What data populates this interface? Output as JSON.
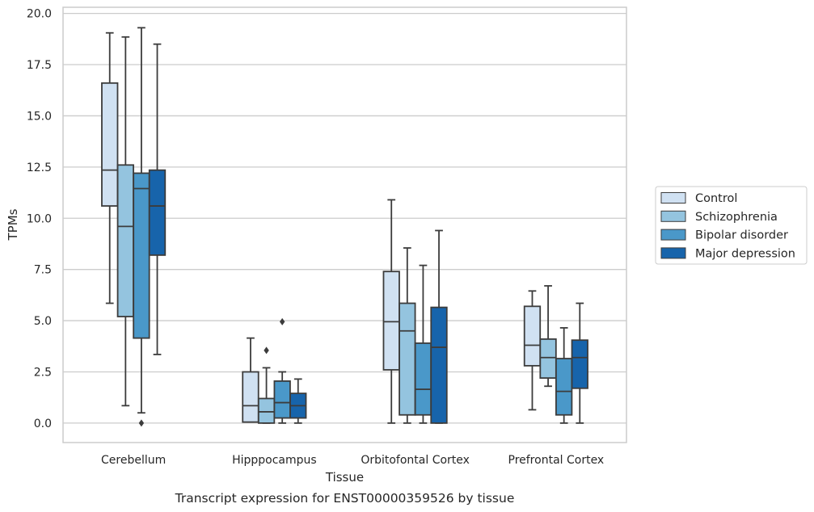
{
  "caption": "Transcript expression for ENST00000359526 by tissue",
  "chart_data": {
    "type": "box",
    "xlabel": "Tissue",
    "ylabel": "TPMs",
    "ylim": [
      -0.95,
      20.3
    ],
    "yticks": [
      0.0,
      2.5,
      5.0,
      7.5,
      10.0,
      12.5,
      15.0,
      17.5,
      20.0
    ],
    "ytick_labels": [
      "0.0",
      "2.5",
      "5.0",
      "7.5",
      "10.0",
      "12.5",
      "15.0",
      "17.5",
      "20.0"
    ],
    "grid": "horizontal",
    "legend_position": "right, outside plot",
    "categories": [
      "Cerebellum",
      "Hipppocampus",
      "Orbitofontal Cortex",
      "Prefrontal Cortex"
    ],
    "series": [
      {
        "name": "Control",
        "color": "#d0e1f2",
        "boxes": [
          {
            "whislo": 5.85,
            "q1": 10.6,
            "med": 12.35,
            "q3": 16.6,
            "whishi": 19.05,
            "fliers": []
          },
          {
            "whislo": 0.05,
            "q1": 0.05,
            "med": 0.85,
            "q3": 2.5,
            "whishi": 4.15,
            "fliers": []
          },
          {
            "whislo": 0.0,
            "q1": 2.6,
            "med": 4.95,
            "q3": 7.4,
            "whishi": 10.9,
            "fliers": []
          },
          {
            "whislo": 0.65,
            "q1": 2.8,
            "med": 3.8,
            "q3": 5.7,
            "whishi": 6.45,
            "fliers": []
          }
        ]
      },
      {
        "name": "Schizophrenia",
        "color": "#94c4df",
        "boxes": [
          {
            "whislo": 0.85,
            "q1": 5.2,
            "med": 9.6,
            "q3": 12.6,
            "whishi": 18.85,
            "fliers": []
          },
          {
            "whislo": 0.0,
            "q1": 0.0,
            "med": 0.55,
            "q3": 1.2,
            "whishi": 2.7,
            "fliers": [
              3.55
            ]
          },
          {
            "whislo": 0.0,
            "q1": 0.4,
            "med": 4.5,
            "q3": 5.85,
            "whishi": 8.55,
            "fliers": []
          },
          {
            "whislo": 1.8,
            "q1": 2.2,
            "med": 3.2,
            "q3": 4.1,
            "whishi": 6.7,
            "fliers": []
          }
        ]
      },
      {
        "name": "Bipolar disorder",
        "color": "#4a98c9",
        "boxes": [
          {
            "whislo": 0.5,
            "q1": 4.15,
            "med": 11.45,
            "q3": 12.2,
            "whishi": 19.3,
            "fliers": [
              0.0
            ]
          },
          {
            "whislo": 0.0,
            "q1": 0.25,
            "med": 1.0,
            "q3": 2.05,
            "whishi": 2.5,
            "fliers": [
              4.95
            ]
          },
          {
            "whislo": 0.0,
            "q1": 0.4,
            "med": 1.65,
            "q3": 3.9,
            "whishi": 7.7,
            "fliers": []
          },
          {
            "whislo": 0.0,
            "q1": 0.4,
            "med": 1.55,
            "q3": 3.15,
            "whishi": 4.65,
            "fliers": []
          }
        ]
      },
      {
        "name": "Major depression",
        "color": "#1764ab",
        "boxes": [
          {
            "whislo": 3.35,
            "q1": 8.2,
            "med": 10.6,
            "q3": 12.35,
            "whishi": 18.5,
            "fliers": []
          },
          {
            "whislo": 0.0,
            "q1": 0.25,
            "med": 0.85,
            "q3": 1.45,
            "whishi": 2.15,
            "fliers": []
          },
          {
            "whislo": 0.0,
            "q1": 0.0,
            "med": 3.7,
            "q3": 5.65,
            "whishi": 9.4,
            "fliers": []
          },
          {
            "whislo": 0.0,
            "q1": 1.7,
            "med": 3.2,
            "q3": 4.05,
            "whishi": 5.85,
            "fliers": []
          }
        ]
      }
    ]
  }
}
